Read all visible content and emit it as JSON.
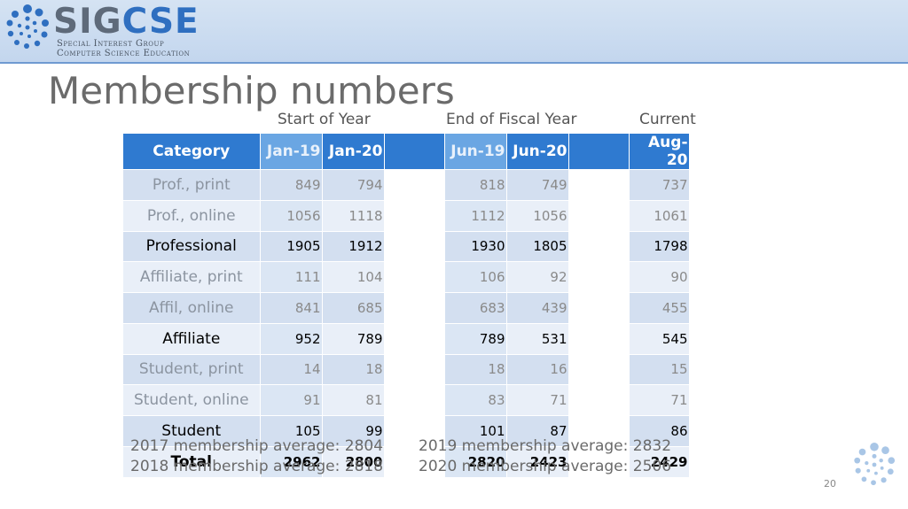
{
  "logo": {
    "word_left": "SIG",
    "word_accent": "CSE",
    "sub_line1": "Special Interest Group",
    "sub_line2": "Computer Science Education"
  },
  "slide": {
    "title": "Membership numbers",
    "page_number": "20"
  },
  "group_labels": {
    "start": "Start of Year",
    "fiscal": "End of Fiscal Year",
    "current": "Current"
  },
  "table": {
    "headers": [
      "Category",
      "Jan-19",
      "Jan-20",
      "",
      "Jun-19",
      "Jun-20",
      "",
      "Aug-20"
    ],
    "rows": [
      {
        "category": "Prof., print",
        "jan19": "849",
        "jan20": "794",
        "jun19": "818",
        "jun20": "749",
        "aug20": "737"
      },
      {
        "category": "Prof., online",
        "jan19": "1056",
        "jan20": "1118",
        "jun19": "1112",
        "jun20": "1056",
        "aug20": "1061"
      },
      {
        "category": "Professional",
        "jan19": "1905",
        "jan20": "1912",
        "jun19": "1930",
        "jun20": "1805",
        "aug20": "1798"
      },
      {
        "category": "Affiliate, print",
        "jan19": "111",
        "jan20": "104",
        "jun19": "106",
        "jun20": "92",
        "aug20": "90"
      },
      {
        "category": "Affil, online",
        "jan19": "841",
        "jan20": "685",
        "jun19": "683",
        "jun20": "439",
        "aug20": "455"
      },
      {
        "category": "Affiliate",
        "jan19": "952",
        "jan20": "789",
        "jun19": "789",
        "jun20": "531",
        "aug20": "545"
      },
      {
        "category": "Student, print",
        "jan19": "14",
        "jan20": "18",
        "jun19": "18",
        "jun20": "16",
        "aug20": "15"
      },
      {
        "category": "Student, online",
        "jan19": "91",
        "jan20": "81",
        "jun19": "83",
        "jun20": "71",
        "aug20": "71"
      },
      {
        "category": "Student",
        "jan19": "105",
        "jan20": "99",
        "jun19": "101",
        "jun20": "87",
        "aug20": "86"
      },
      {
        "category": "Total",
        "jan19": "2962",
        "jan20": "2800",
        "jun19": "2820",
        "jun20": "2423",
        "aug20": "2429"
      }
    ]
  },
  "averages": {
    "y2017": "2017 membership average: 2804",
    "y2018": "2018 membership average: 2818",
    "y2019": "2019 membership average: 2832",
    "y2020": "2020 membership average: 2506"
  },
  "colors": {
    "header_blue": "#2f7ad0",
    "header_light": "#6aa6e3",
    "row_dark": "#d3dff0",
    "row_light": "#e9eff8"
  }
}
